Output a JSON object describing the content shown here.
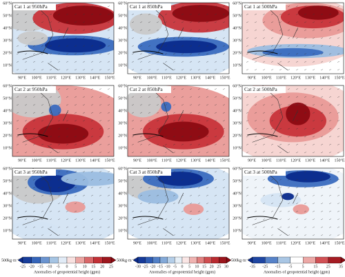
{
  "panels": [
    {
      "title": "Cat 1 at 950hPa"
    },
    {
      "title": "Cat 1 at 850hPa"
    },
    {
      "title": "Cat 1 at 500hPa"
    },
    {
      "title": "Cat 2 at 950hPa"
    },
    {
      "title": "Cat 2 at 850hPa"
    },
    {
      "title": "Cat 2 at 500hPa"
    },
    {
      "title": "Cat 3 at 950hPa"
    },
    {
      "title": "Cat 3 at 850hPa"
    },
    {
      "title": "Cat 3 at 500hPa"
    }
  ],
  "lat_labels": [
    "60°N",
    "50°N",
    "40°N",
    "30°N",
    "20°N",
    "10°N"
  ],
  "lon_labels": [
    "90°E",
    "100°E",
    "110°E",
    "120°E",
    "130°E",
    "140°E",
    "150°E"
  ],
  "colorbars": [
    {
      "ticks": [
        -25,
        -20,
        -15,
        -10,
        -5,
        0,
        5,
        10,
        15,
        20,
        25
      ],
      "label": "Anomalies of geopotential height (gpm)",
      "reference": "500kg·m⁻¹·s⁻¹"
    },
    {
      "ticks": [
        -30,
        -25,
        -20,
        -15,
        -10,
        -5,
        0,
        5,
        10,
        15,
        20,
        25,
        30
      ],
      "label": "Anomalies of geopotential height (gpm)",
      "reference": "500kg·m⁻¹·s⁻¹"
    },
    {
      "ticks": [
        -35,
        -25,
        -15,
        -5,
        5,
        15,
        25,
        35
      ],
      "label": "Anomalies of geopotential height (gpm)",
      "reference": "500kg·m⁻¹·s⁻¹"
    }
  ]
}
